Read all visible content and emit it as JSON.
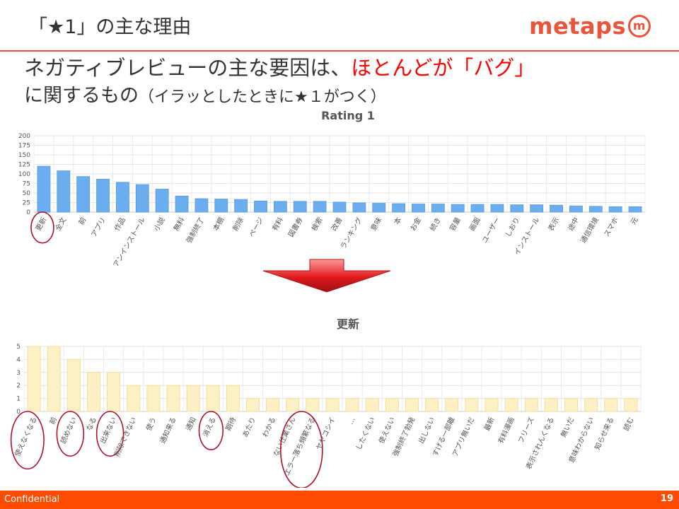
{
  "slide": {
    "title": "「★1」の主な理由",
    "logo_text": "metaps",
    "logo_mark": "m",
    "headline_line1_a": "ネガティブレビューの主な要因は、",
    "headline_line1_b": "ほとんどが「バグ」",
    "headline_line2_a": "に関するもの",
    "headline_line2_b": "（イラッとしたときに★１がつく）",
    "footer_label": "Confidential",
    "page_number": "19"
  },
  "colors": {
    "accent": "#e8553a",
    "footer": "#ff4b00",
    "highlight_text": "#ff0000",
    "bar1": "#6aaef0",
    "bar2": "#fdf0c4",
    "circle": "#b0102a"
  },
  "chart_data": [
    {
      "type": "bar",
      "title": "Rating 1",
      "categories": [
        "更新",
        "全文",
        "前",
        "アプリ",
        "作品",
        "アンインストール",
        "小説",
        "無料",
        "強制終了",
        "本棚",
        "削除",
        "ページ",
        "有料",
        "図書券",
        "検索",
        "改善",
        "ランキング",
        "意味",
        "本",
        "お金",
        "続き",
        "容量",
        "画面",
        "ユーザー",
        "しおり",
        "インストール",
        "表示",
        "途中",
        "通信環境",
        "スマホ",
        "元"
      ],
      "values": [
        120,
        108,
        93,
        86,
        78,
        72,
        60,
        42,
        35,
        34,
        33,
        29,
        28,
        28,
        28,
        26,
        24,
        23,
        22,
        21,
        21,
        20,
        20,
        20,
        19,
        19,
        18,
        16,
        15,
        14,
        14
      ],
      "ylim": [
        0,
        200
      ],
      "yticks": [
        0,
        25,
        50,
        75,
        100,
        125,
        150,
        175,
        200
      ],
      "grid": true,
      "circled": [
        "更新"
      ]
    },
    {
      "type": "bar",
      "title": "更新",
      "categories": [
        "使えなくなる",
        "前",
        "読めない",
        "なる",
        "出来ない",
        "削除できない",
        "使う",
        "通知来る",
        "通知",
        "消える",
        "期待",
        "あたり",
        "わかる",
        "ない仕業さん",
        "エラー落ち頻繁なる",
        "ヤヤコシイ",
        "…",
        "したくない",
        "使えない",
        "強制終了勃発",
        "出しない",
        "すげる一部離",
        "アプリ無いだ",
        "最新",
        "有料漫画",
        "フリーズ",
        "表示されんくなる",
        "無いだ",
        "意味わからない",
        "知らせ来る",
        "読む"
      ],
      "values": [
        5,
        5,
        4,
        3,
        3,
        2,
        2,
        2,
        2,
        2,
        2,
        1,
        1,
        1,
        1,
        1,
        1,
        1,
        1,
        1,
        1,
        1,
        1,
        1,
        1,
        1,
        1,
        1,
        1,
        1,
        1
      ],
      "ylim": [
        0,
        5
      ],
      "yticks": [
        0,
        1,
        2,
        3,
        4,
        5
      ],
      "grid": true,
      "circled": [
        "使えなくなる",
        "読めない",
        "出来ない",
        "消える",
        "エラー落ち頻繁なる"
      ]
    }
  ]
}
